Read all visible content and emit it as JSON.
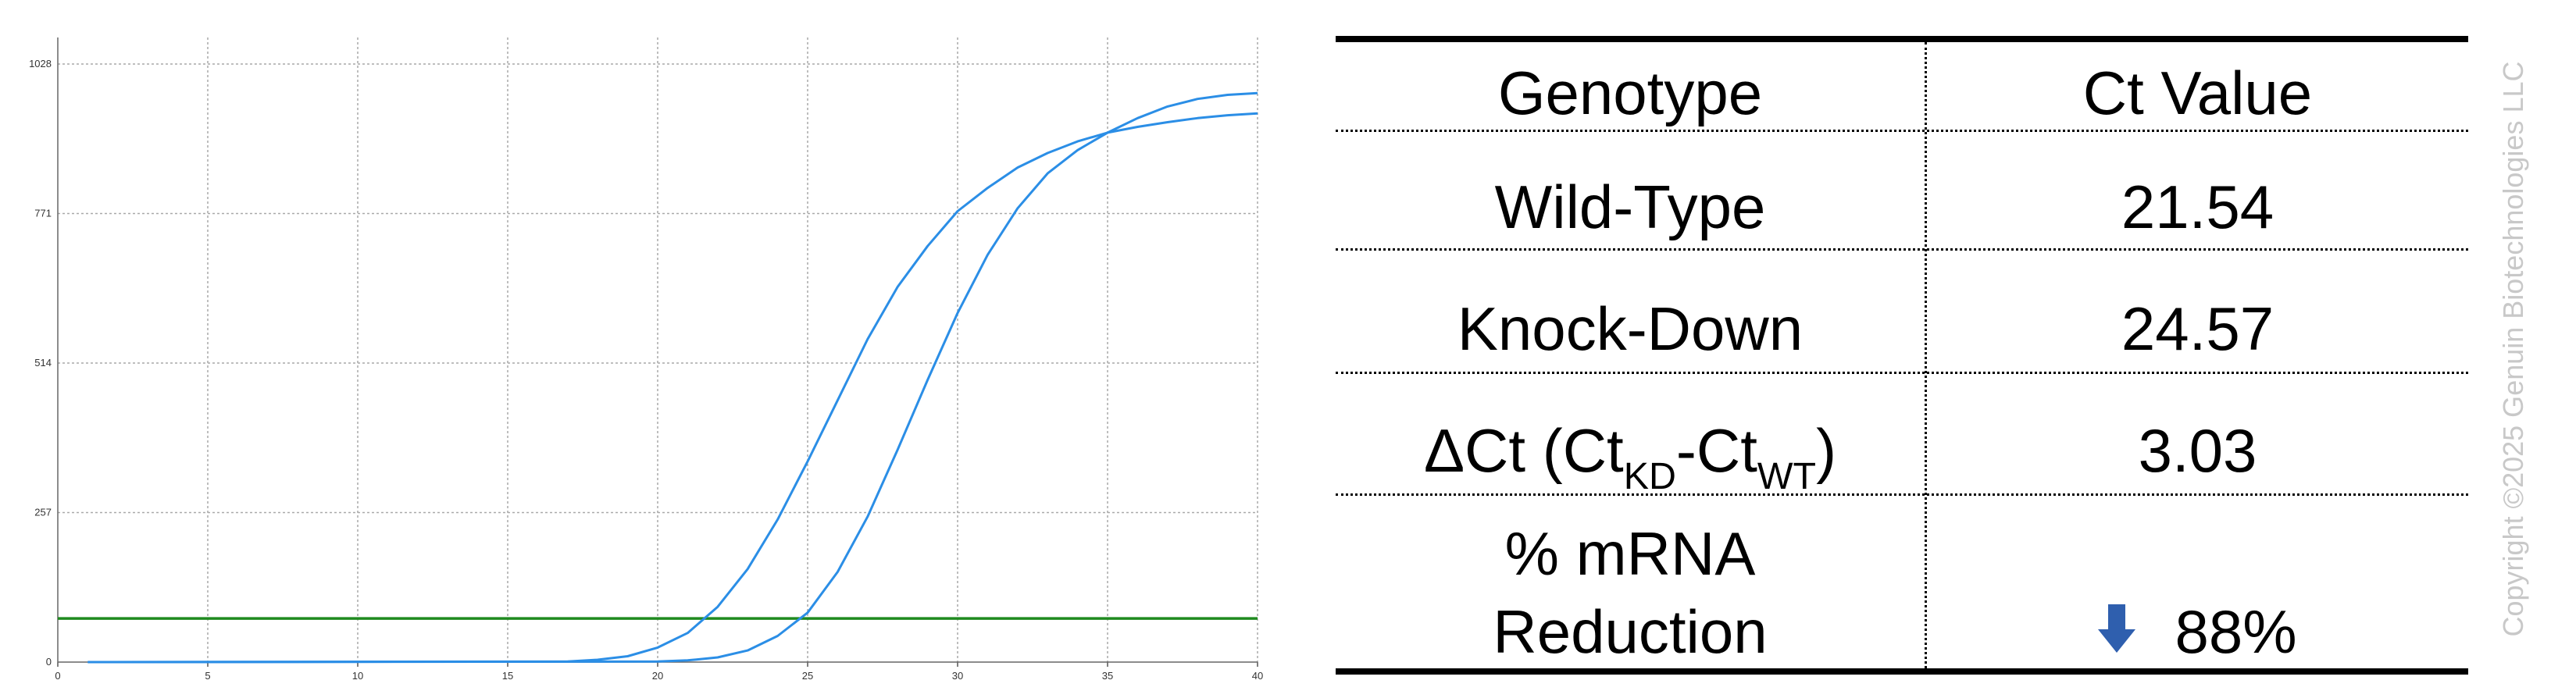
{
  "chart_data": {
    "type": "line",
    "title": "",
    "xlabel": "",
    "ylabel": "",
    "xlim": [
      0,
      40
    ],
    "ylim": [
      0,
      1028
    ],
    "x_ticks": [
      "0",
      "5",
      "10",
      "15",
      "20",
      "25",
      "30",
      "35",
      "40"
    ],
    "y_ticks": [
      "0",
      "257",
      "514",
      "771",
      "1028"
    ],
    "grid": true,
    "series": [
      {
        "color": "#2b8ee6",
        "x": [
          1,
          17,
          18,
          19,
          20,
          21,
          22,
          23,
          24,
          25,
          26,
          27,
          28,
          29,
          30,
          31,
          32,
          33,
          34,
          35,
          36,
          37,
          38,
          39,
          40
        ],
        "y": [
          0,
          1,
          4,
          10,
          25,
          50,
          95,
          160,
          245,
          345,
          450,
          555,
          645,
          715,
          775,
          815,
          850,
          875,
          895,
          910,
          920,
          928,
          935,
          940,
          943
        ]
      },
      {
        "color": "#2b8ee6",
        "x": [
          1,
          20,
          21,
          22,
          23,
          24,
          25,
          26,
          27,
          28,
          29,
          30,
          31,
          32,
          33,
          34,
          35,
          36,
          37,
          38,
          39,
          40
        ],
        "y": [
          0,
          1,
          3,
          8,
          20,
          45,
          85,
          155,
          250,
          365,
          485,
          600,
          700,
          780,
          840,
          880,
          910,
          935,
          955,
          968,
          975,
          978
        ]
      }
    ],
    "threshold": {
      "y": 75,
      "color": "#1f8a1f"
    }
  },
  "table": {
    "headers": [
      "Genotype",
      "Ct Value"
    ],
    "rows": [
      {
        "label": "Wild-Type",
        "value": "21.54"
      },
      {
        "label": "Knock-Down",
        "value": "24.57"
      },
      {
        "label_prefix": "ΔCt (Ct",
        "label_sub1": "KD",
        "label_mid": "-Ct",
        "label_sub2": "WT",
        "label_suffix": ")",
        "value": "3.03"
      },
      {
        "label_line1": "% mRNA",
        "label_line2": "Reduction",
        "value": "88%",
        "icon": "down-arrow-icon"
      }
    ],
    "arrow_color": "#2f5fae"
  },
  "watermark": "Copyright ©2025 Genuin Biotechnologies LLC"
}
